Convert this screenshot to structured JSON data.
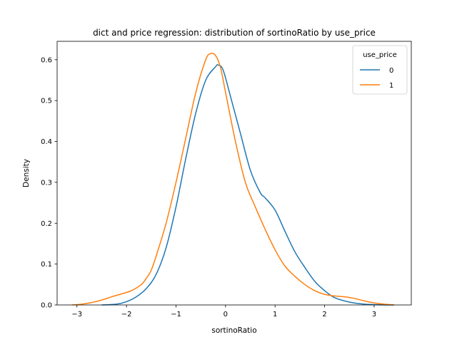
{
  "chart_data": {
    "type": "line",
    "title": "dict and price regression: distribution of sortinoRatio by use_price",
    "xlabel": "sortinoRatio",
    "ylabel": "Density",
    "xlim": [
      -3.4,
      3.75
    ],
    "ylim": [
      0,
      0.645
    ],
    "xticks": [
      -3,
      -2,
      -1,
      0,
      1,
      2,
      3
    ],
    "xtick_labels": [
      "−3",
      "−2",
      "−1",
      "0",
      "1",
      "2",
      "3"
    ],
    "yticks": [
      0.0,
      0.1,
      0.2,
      0.3,
      0.4,
      0.5,
      0.6
    ],
    "ytick_labels": [
      "0.0",
      "0.1",
      "0.2",
      "0.3",
      "0.4",
      "0.5",
      "0.6"
    ],
    "grid": false,
    "legend": {
      "title": "use_price",
      "placement": "top-right"
    },
    "series": [
      {
        "name": "0",
        "color": "#1f77b4",
        "x": [
          -2.5,
          -2.2,
          -2.0,
          -1.8,
          -1.6,
          -1.4,
          -1.2,
          -1.0,
          -0.8,
          -0.6,
          -0.4,
          -0.2,
          -0.15,
          -0.05,
          0.1,
          0.3,
          0.5,
          0.7,
          0.8,
          1.0,
          1.2,
          1.4,
          1.6,
          1.8,
          2.0,
          2.2,
          2.5,
          2.8,
          3.1,
          3.4
        ],
        "y": [
          0.0,
          0.002,
          0.008,
          0.02,
          0.04,
          0.075,
          0.14,
          0.24,
          0.36,
          0.47,
          0.55,
          0.583,
          0.587,
          0.575,
          0.51,
          0.42,
          0.33,
          0.275,
          0.262,
          0.232,
          0.18,
          0.13,
          0.092,
          0.058,
          0.035,
          0.018,
          0.007,
          0.002,
          0.0005,
          0.0
        ]
      },
      {
        "name": "1",
        "color": "#ff7f0e",
        "x": [
          -3.1,
          -2.9,
          -2.7,
          -2.5,
          -2.3,
          -2.1,
          -1.9,
          -1.7,
          -1.6,
          -1.5,
          -1.4,
          -1.2,
          -1.0,
          -0.8,
          -0.6,
          -0.4,
          -0.3,
          -0.2,
          -0.1,
          0.0,
          0.2,
          0.4,
          0.6,
          0.8,
          1.0,
          1.2,
          1.4,
          1.6,
          1.8,
          2.0,
          2.2,
          2.4,
          2.6,
          2.8,
          3.0,
          3.2,
          3.4
        ],
        "y": [
          0.0,
          0.002,
          0.006,
          0.012,
          0.02,
          0.027,
          0.035,
          0.05,
          0.065,
          0.085,
          0.12,
          0.2,
          0.3,
          0.41,
          0.52,
          0.6,
          0.615,
          0.61,
          0.58,
          0.52,
          0.4,
          0.3,
          0.24,
          0.185,
          0.135,
          0.095,
          0.07,
          0.05,
          0.035,
          0.026,
          0.022,
          0.02,
          0.016,
          0.01,
          0.005,
          0.002,
          0.0
        ]
      }
    ]
  }
}
